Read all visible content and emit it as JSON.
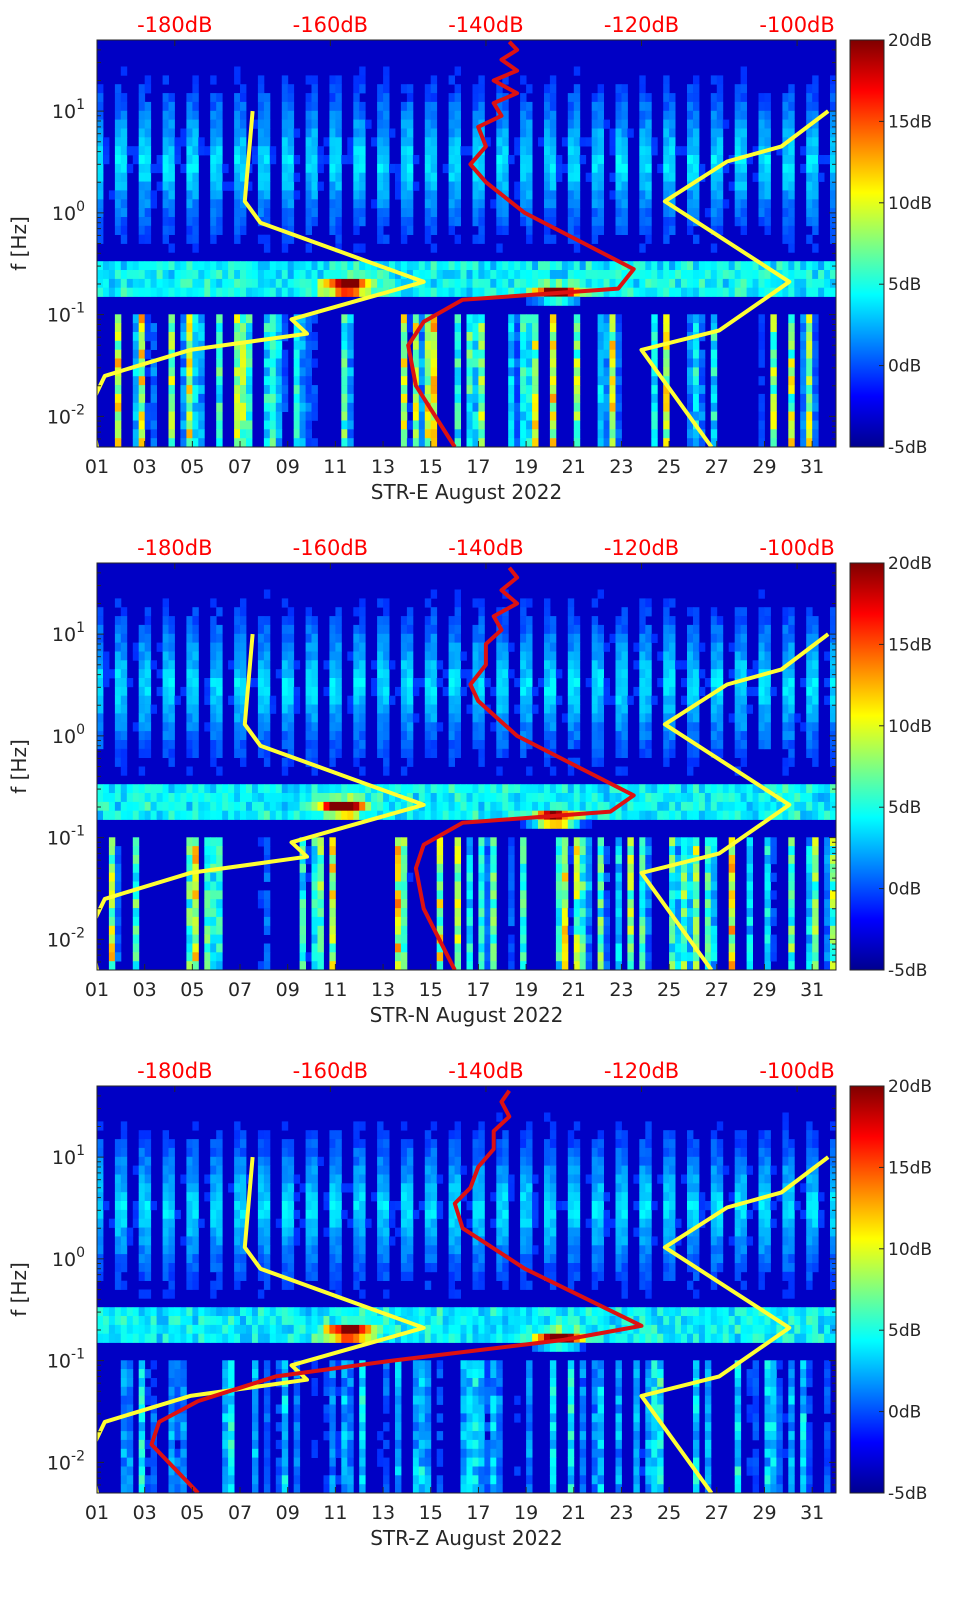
{
  "figure": {
    "colorbar_ticks": [
      "20dB",
      "15dB",
      "10dB",
      "5dB",
      "0dB",
      "-5dB"
    ],
    "colorbar_stops": [
      "#7f0000",
      "#ff0000",
      "#ff8000",
      "#ffff00",
      "#80ff80",
      "#00ffff",
      "#0080ff",
      "#0000ff",
      "#00008f"
    ],
    "top_axis_labels": [
      "-180dB",
      "-160dB",
      "-140dB",
      "-120dB",
      "-100dB"
    ],
    "x_tick_labels": [
      "01",
      "03",
      "05",
      "07",
      "09",
      "11",
      "13",
      "15",
      "17",
      "19",
      "21",
      "23",
      "25",
      "27",
      "29",
      "31"
    ],
    "y_axis_label": "f [Hz]",
    "colors": {
      "model_curves": "#ffff33",
      "median_curve": "#dd1111",
      "top_axis_text": "#ff0000"
    }
  },
  "chart_data": [
    {
      "type": "heatmap",
      "xlabel": "STR-E August 2022",
      "ylabel": "f [Hz]",
      "x_days": [
        1,
        32
      ],
      "ylim_hz": [
        0.005,
        50
      ],
      "y_scale": "log",
      "y_ticks": [
        {
          "value": 0.01,
          "label": "10^-2"
        },
        {
          "value": 0.1,
          "label": "10^-1"
        },
        {
          "value": 1,
          "label": "10^0"
        },
        {
          "value": 10,
          "label": "10^1"
        }
      ],
      "colorbar": {
        "min_db": -5,
        "max_db": 20
      },
      "top_axis": {
        "labels": [
          "-180dB",
          "-160dB",
          "-140dB",
          "-120dB",
          "-100dB"
        ],
        "range_db": [
          -190,
          -95
        ]
      },
      "microseism_hotspots": [
        {
          "day": 11.5,
          "hz": 0.19
        },
        {
          "day": 20.3,
          "hz": 0.16
        }
      ],
      "series": [
        {
          "values": [
            [
              -190,
              0.005
            ],
            [
              -191,
              0.012
            ],
            [
              -189,
              0.025
            ],
            [
              -178,
              0.045
            ],
            [
              -163,
              0.065
            ],
            [
              -165,
              0.09
            ],
            [
              -148,
              0.21
            ],
            [
              -169,
              0.8
            ],
            [
              -171,
              1.3
            ],
            [
              -170,
              10
            ]
          ]
        },
        {
          "values": [
            [
              -111,
              0.005
            ],
            [
              -120,
              0.045
            ],
            [
              -110,
              0.07
            ],
            [
              -101,
              0.21
            ],
            [
              -117,
              1.3
            ],
            [
              -109,
              3.2
            ],
            [
              -102,
              4.5
            ],
            [
              -96,
              10
            ]
          ]
        },
        {
          "values": [
            [
              -144,
              0.005
            ],
            [
              -149,
              0.02
            ],
            [
              -150,
              0.05
            ],
            [
              -148,
              0.085
            ],
            [
              -143,
              0.14
            ],
            [
              -123,
              0.18
            ],
            [
              -121,
              0.28
            ],
            [
              -135,
              1.0
            ],
            [
              -140,
              2.0
            ],
            [
              -142,
              3.0
            ],
            [
              -140,
              4.5
            ],
            [
              -141,
              7
            ],
            [
              -138,
              9
            ],
            [
              -139,
              12
            ],
            [
              -136,
              15
            ],
            [
              -139,
              20
            ],
            [
              -136,
              25
            ],
            [
              -138,
              32
            ],
            [
              -136,
              40
            ],
            [
              -137,
              48
            ]
          ]
        }
      ]
    },
    {
      "type": "heatmap",
      "xlabel": "STR-N August 2022",
      "ylabel": "f [Hz]",
      "x_days": [
        1,
        32
      ],
      "ylim_hz": [
        0.005,
        50
      ],
      "y_scale": "log",
      "y_ticks": [
        {
          "value": 0.01,
          "label": "10^-2"
        },
        {
          "value": 0.1,
          "label": "10^-1"
        },
        {
          "value": 1,
          "label": "10^0"
        },
        {
          "value": 10,
          "label": "10^1"
        }
      ],
      "colorbar": {
        "min_db": -5,
        "max_db": 20
      },
      "top_axis": {
        "labels": [
          "-180dB",
          "-160dB",
          "-140dB",
          "-120dB",
          "-100dB"
        ],
        "range_db": [
          -190,
          -95
        ]
      },
      "microseism_hotspots": [
        {
          "day": 11.3,
          "hz": 0.2
        },
        {
          "day": 20.2,
          "hz": 0.15
        }
      ],
      "series": [
        {
          "values": [
            [
              -190,
              0.005
            ],
            [
              -191,
              0.012
            ],
            [
              -189,
              0.025
            ],
            [
              -178,
              0.045
            ],
            [
              -163,
              0.065
            ],
            [
              -165,
              0.09
            ],
            [
              -148,
              0.21
            ],
            [
              -169,
              0.8
            ],
            [
              -171,
              1.3
            ],
            [
              -170,
              10
            ]
          ]
        },
        {
          "values": [
            [
              -111,
              0.005
            ],
            [
              -120,
              0.045
            ],
            [
              -110,
              0.07
            ],
            [
              -101,
              0.21
            ],
            [
              -117,
              1.3
            ],
            [
              -109,
              3.2
            ],
            [
              -102,
              4.5
            ],
            [
              -96,
              10
            ]
          ]
        },
        {
          "values": [
            [
              -144,
              0.005
            ],
            [
              -148,
              0.02
            ],
            [
              -149,
              0.05
            ],
            [
              -148,
              0.085
            ],
            [
              -143,
              0.14
            ],
            [
              -124,
              0.18
            ],
            [
              -121,
              0.26
            ],
            [
              -136,
              1.0
            ],
            [
              -141,
              2.2
            ],
            [
              -142,
              3.2
            ],
            [
              -140,
              5
            ],
            [
              -140,
              8
            ],
            [
              -138,
              11
            ],
            [
              -139,
              15
            ],
            [
              -136,
              20
            ],
            [
              -138,
              27
            ],
            [
              -136,
              36
            ],
            [
              -137,
              45
            ]
          ]
        }
      ]
    },
    {
      "type": "heatmap",
      "xlabel": "STR-Z August 2022",
      "ylabel": "f [Hz]",
      "x_days": [
        1,
        32
      ],
      "ylim_hz": [
        0.005,
        50
      ],
      "y_scale": "log",
      "y_ticks": [
        {
          "value": 0.01,
          "label": "10^-2"
        },
        {
          "value": 0.1,
          "label": "10^-1"
        },
        {
          "value": 1,
          "label": "10^0"
        },
        {
          "value": 10,
          "label": "10^1"
        }
      ],
      "colorbar": {
        "min_db": -5,
        "max_db": 20
      },
      "top_axis": {
        "labels": [
          "-180dB",
          "-160dB",
          "-140dB",
          "-120dB",
          "-100dB"
        ],
        "range_db": [
          -190,
          -95
        ]
      },
      "microseism_hotspots": [
        {
          "day": 11.6,
          "hz": 0.19
        },
        {
          "day": 20.4,
          "hz": 0.16
        }
      ],
      "series": [
        {
          "values": [
            [
              -190,
              0.005
            ],
            [
              -191,
              0.012
            ],
            [
              -189,
              0.025
            ],
            [
              -178,
              0.045
            ],
            [
              -163,
              0.065
            ],
            [
              -165,
              0.09
            ],
            [
              -148,
              0.21
            ],
            [
              -169,
              0.8
            ],
            [
              -171,
              1.3
            ],
            [
              -170,
              10
            ]
          ]
        },
        {
          "values": [
            [
              -111,
              0.005
            ],
            [
              -120,
              0.045
            ],
            [
              -110,
              0.07
            ],
            [
              -101,
              0.21
            ],
            [
              -117,
              1.3
            ],
            [
              -109,
              3.2
            ],
            [
              -102,
              4.5
            ],
            [
              -96,
              10
            ]
          ]
        },
        {
          "values": [
            [
              -177,
              0.005
            ],
            [
              -183,
              0.015
            ],
            [
              -182,
              0.025
            ],
            [
              -177,
              0.04
            ],
            [
              -167,
              0.07
            ],
            [
              -152,
              0.1
            ],
            [
              -130,
              0.16
            ],
            [
              -120,
              0.22
            ],
            [
              -135,
              0.8
            ],
            [
              -143,
              2.0
            ],
            [
              -144,
              3.5
            ],
            [
              -142,
              5
            ],
            [
              -141,
              8
            ],
            [
              -139,
              12
            ],
            [
              -139,
              18
            ],
            [
              -137,
              25
            ],
            [
              -138,
              35
            ],
            [
              -137,
              45
            ]
          ]
        }
      ]
    }
  ]
}
